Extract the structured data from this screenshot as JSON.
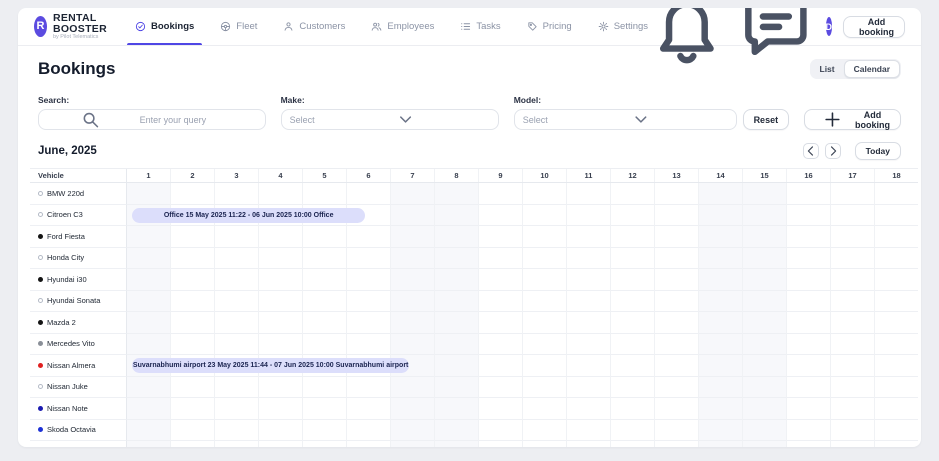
{
  "brand": {
    "name": "RENTAL BOOSTER",
    "tagline": "by Pilot Telematics",
    "logo_letter": "R"
  },
  "nav": {
    "items": [
      {
        "id": "bookings",
        "label": "Bookings",
        "icon": "check-circle-icon",
        "active": true
      },
      {
        "id": "fleet",
        "label": "Fleet",
        "icon": "steering-wheel-icon",
        "active": false
      },
      {
        "id": "customers",
        "label": "Customers",
        "icon": "person-icon",
        "active": false
      },
      {
        "id": "employees",
        "label": "Employees",
        "icon": "people-icon",
        "active": false
      },
      {
        "id": "tasks",
        "label": "Tasks",
        "icon": "task-list-icon",
        "active": false
      },
      {
        "id": "pricing",
        "label": "Pricing",
        "icon": "tag-icon",
        "active": false
      },
      {
        "id": "settings",
        "label": "Settings",
        "icon": "gear-icon",
        "active": false
      }
    ]
  },
  "header": {
    "avatar_letter": "D",
    "add_booking_label": "Add booking"
  },
  "page": {
    "title": "Bookings"
  },
  "view_toggle": {
    "options": [
      "List",
      "Calendar"
    ],
    "selected": "Calendar"
  },
  "filters": {
    "search": {
      "label": "Search:",
      "placeholder": "Enter your query",
      "value": ""
    },
    "make": {
      "label": "Make:",
      "placeholder": "Select"
    },
    "model": {
      "label": "Model:",
      "placeholder": "Select"
    },
    "reset_label": "Reset",
    "add_booking_label": "Add booking"
  },
  "calendar": {
    "month_label": "June, 2025",
    "today_label": "Today",
    "vehicle_header": "Vehicle",
    "day_count": 18,
    "weekend_days": [
      1,
      7,
      8,
      14,
      15
    ],
    "vehicles": [
      {
        "name": "BMW 220d",
        "dot": "hollow"
      },
      {
        "name": "Citroen C3",
        "dot": "hollow"
      },
      {
        "name": "Ford Fiesta",
        "dot": "black"
      },
      {
        "name": "Honda City",
        "dot": "hollow"
      },
      {
        "name": "Hyundai i30",
        "dot": "black"
      },
      {
        "name": "Hyundai Sonata",
        "dot": "hollow"
      },
      {
        "name": "Mazda 2",
        "dot": "black"
      },
      {
        "name": "Mercedes Vito",
        "dot": "gray"
      },
      {
        "name": "Nissan Almera",
        "dot": "red"
      },
      {
        "name": "Nissan Juke",
        "dot": "hollow"
      },
      {
        "name": "Nissan Note",
        "dot": "navy"
      },
      {
        "name": "Skoda Octavia",
        "dot": "blue"
      }
    ],
    "bookings": [
      {
        "vehicle": "Citroen C3",
        "row": 1,
        "label": "Office 15 May 2025 11:22 - 06 Jun 2025 10:00 Office",
        "start_day": 0.11,
        "end_day": 5.42
      },
      {
        "vehicle": "Nissan Almera",
        "row": 8,
        "label": "Suvarnabhumi airport 23 May 2025 11:44 - 07 Jun 2025 10:00 Suvarnabhumi airport",
        "start_day": 0.11,
        "end_day": 6.42
      }
    ]
  },
  "colors": {
    "accent": "#4f46e5",
    "avatar_bg": "#5b4be0",
    "booking_pill_bg": "#dcdefb",
    "booking_pill_text": "#1b2450",
    "dot_colors": {
      "black": "#141414",
      "gray": "#8a8f98",
      "red": "#e02020",
      "navy": "#1b1bb0",
      "blue": "#1d31d6"
    }
  }
}
